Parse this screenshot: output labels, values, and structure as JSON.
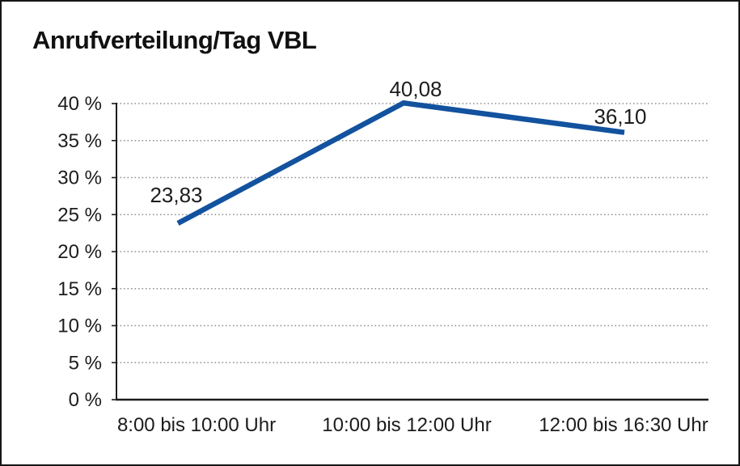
{
  "chart_data": {
    "type": "line",
    "title": "Anrufverteilung/Tag VBL",
    "categories": [
      "8:00 bis 10:00 Uhr",
      "10:00 bis 12:00 Uhr",
      "12:00 bis 16:30 Uhr"
    ],
    "values": [
      23.83,
      40.08,
      36.1
    ],
    "value_labels": [
      "23,83",
      "40,08",
      "36,10"
    ],
    "series_name": "Anrufverteilung",
    "xlabel": "",
    "ylabel": "",
    "ylim": [
      0,
      40
    ],
    "y_ticks": [
      0,
      5,
      10,
      15,
      20,
      25,
      30,
      35,
      40
    ],
    "y_tick_labels": [
      "0 %",
      "5 %",
      "10 %",
      "15 %",
      "20 %",
      "25 %",
      "30 %",
      "35 %",
      "40 %"
    ],
    "grid": "horizontal-dotted",
    "legend": "none",
    "markers": "none",
    "colors": {
      "line": "#12529e",
      "axis": "#1c1c1c",
      "grid": "#909090",
      "text": "#1c1c1c",
      "title": "#111111",
      "border": "#161616",
      "background": "#ffffff"
    }
  }
}
